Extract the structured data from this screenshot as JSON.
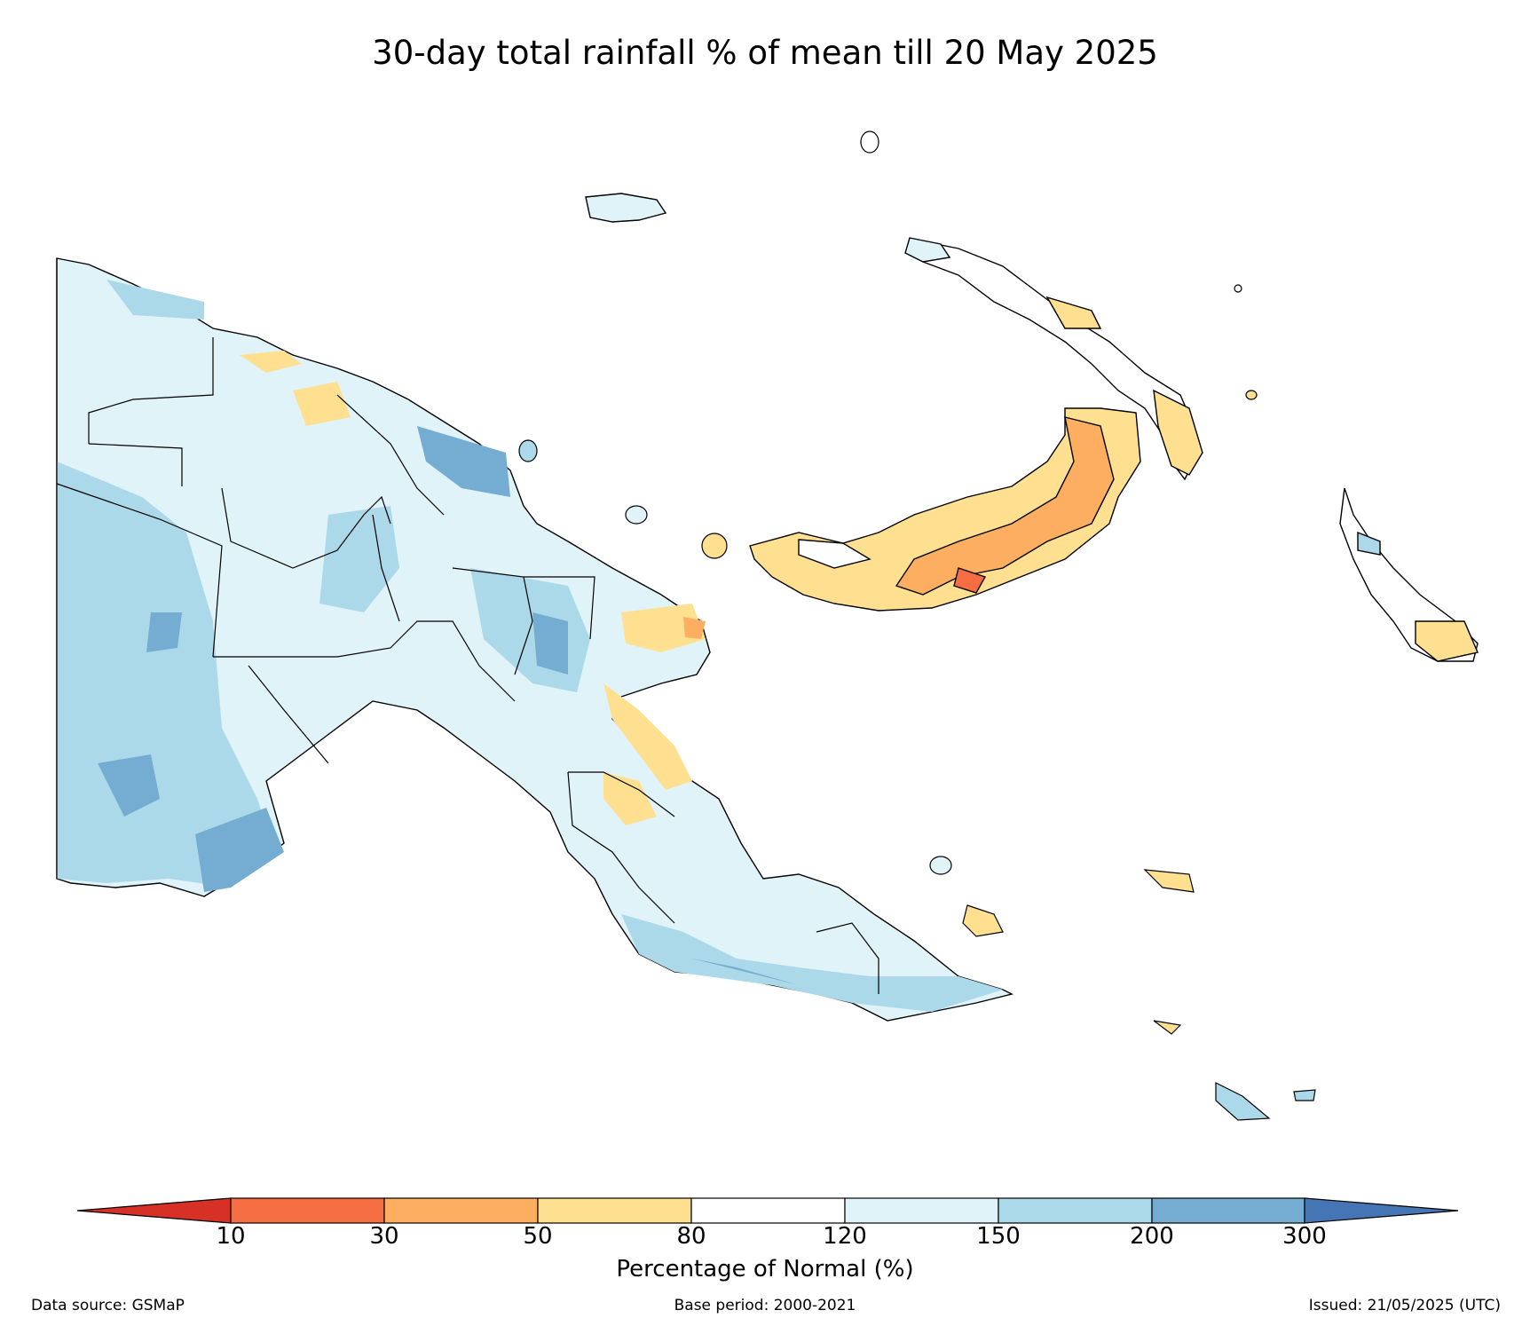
{
  "title": "30-day total rainfall % of mean till 20 May 2025",
  "legend": {
    "label": "Percentage of Normal (%)",
    "ticks": [
      "10",
      "30",
      "50",
      "80",
      "120",
      "150",
      "200",
      "300"
    ],
    "bins": [
      {
        "range": "<10",
        "color": "#d73027"
      },
      {
        "range": "10-30",
        "color": "#f46d43"
      },
      {
        "range": "30-50",
        "color": "#fdae61"
      },
      {
        "range": "50-80",
        "color": "#fee090"
      },
      {
        "range": "80-120",
        "color": "#ffffff"
      },
      {
        "range": "120-150",
        "color": "#e0f3f8"
      },
      {
        "range": "150-200",
        "color": "#abd9e9"
      },
      {
        "range": "200-300",
        "color": "#74add1"
      },
      {
        "range": ">300",
        "color": "#4575b4"
      }
    ]
  },
  "footer": {
    "source": "Data source: GSMaP",
    "base_period": "Base period: 2000-2021",
    "issued": "Issued: 21/05/2025 (UTC)"
  }
}
